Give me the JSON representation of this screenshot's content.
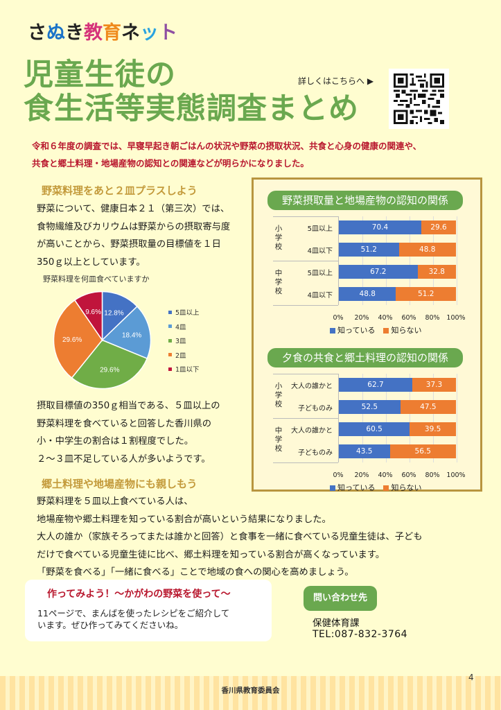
{
  "logo": {
    "chars": [
      {
        "c": "さ",
        "color": "#222222"
      },
      {
        "c": "ぬ",
        "color": "#1a73c8"
      },
      {
        "c": "き",
        "color": "#222222"
      },
      {
        "c": "教",
        "color": "#d6337a"
      },
      {
        "c": "育",
        "color": "#ef8a1c"
      },
      {
        "c": "ネ",
        "color": "#222222"
      },
      {
        "c": "ッ",
        "color": "#29a3e0"
      },
      {
        "c": "ト",
        "color": "#8e4fa2"
      }
    ],
    "text": "さぬき教育ネット"
  },
  "title": {
    "line1": "児童生徒の",
    "line2": "食生活等実態調査まとめ"
  },
  "detail_link": "詳しくはこちらへ ▶",
  "intro": {
    "line1": "令和６年度の調査では、早寝早起き朝ごはんの状況や野菜の摂取状況、共食と心身の健康の関連や、",
    "line2": "共食と郷土料理・地場産物の認知との関連などが明らかになりました。"
  },
  "section1": {
    "heading": "野菜料理をあと２皿プラスしよう",
    "para1": [
      "野菜について、健康日本２１（第三次）では、",
      "食物繊維及びカリウムは野菜からの摂取寄与度",
      "が高いことから、野菜摂取量の目標値を１日",
      "350ｇ以上としています。"
    ],
    "para2": [
      "摂取目標値の350ｇ相当である、５皿以上の",
      "野菜料理を食べていると回答した香川県の",
      "小・中学生の割合は１割程度でした。",
      " ２～３皿不足している人が多いようです。"
    ]
  },
  "section2": {
    "heading": "郷土料理や地場産物にも親しもう",
    "lines": [
      "野菜料理を５皿以上食べている人は、",
      "地場産物や郷土料理を知っている割合が高いという結果になりました。",
      "大人の誰か（家族そろってまたは誰かと回答）と食事を一緒に食べている児童生徒は、子ども",
      "だけで食べている児童生徒に比べ、郷土料理を知っている割合が高くなっています。",
      "「野菜を食べる」「一緒に食べる」ことで地域の食への関心を高めましょう。"
    ]
  },
  "chart_data": [
    {
      "type": "pie",
      "title": "野菜料理を何皿食べていますか",
      "categories": [
        "5皿以上",
        "4皿",
        "3皿",
        "2皿",
        "1皿以下"
      ],
      "values": [
        12.8,
        18.4,
        29.6,
        29.6,
        9.6
      ],
      "labels": [
        "12.8%",
        "18.4%",
        "29.6%",
        "29.6%",
        "9.6%"
      ],
      "colors": [
        "#4472c4",
        "#5b9bd5",
        "#70ad47",
        "#ed7d31",
        "#c0143c"
      ],
      "legend_position": "right"
    },
    {
      "type": "bar",
      "orientation": "horizontal-stacked-100",
      "title": "野菜摂取量と地場産物の認知の関係",
      "groups": [
        "小学校",
        "中学校"
      ],
      "categories": [
        "5皿以上",
        "4皿以下",
        "5皿以上",
        "4皿以下"
      ],
      "series": [
        {
          "name": "知っている",
          "color": "#4472c4",
          "values": [
            70.4,
            51.2,
            67.2,
            48.8
          ]
        },
        {
          "name": "知らない",
          "color": "#ed7d31",
          "values": [
            29.6,
            48.8,
            32.8,
            51.2
          ]
        }
      ],
      "xticks": [
        "0%",
        "20%",
        "40%",
        "60%",
        "80%",
        "100%"
      ],
      "xlim": [
        0,
        100
      ],
      "legend_position": "bottom"
    },
    {
      "type": "bar",
      "orientation": "horizontal-stacked-100",
      "title": "夕食の共食と郷土料理の認知の関係",
      "groups": [
        "小学校",
        "中学校"
      ],
      "categories": [
        "大人の誰かと",
        "子どものみ",
        "大人の誰かと",
        "子どものみ"
      ],
      "series": [
        {
          "name": "知っている",
          "color": "#4472c4",
          "values": [
            62.7,
            52.5,
            60.5,
            43.5
          ]
        },
        {
          "name": "知らない",
          "color": "#ed7d31",
          "values": [
            37.3,
            47.5,
            39.5,
            56.5
          ]
        }
      ],
      "xticks": [
        "0%",
        "20%",
        "40%",
        "60%",
        "80%",
        "100%"
      ],
      "xlim": [
        0,
        100
      ],
      "legend_position": "bottom"
    }
  ],
  "recipe": {
    "title": "作ってみよう！～かがわの野菜を使って～",
    "line1": "11ページで、まんばを使ったレシピをご紹介して",
    "line2": "います。ぜひ作ってみてくださいね。"
  },
  "contact": {
    "badge": "問い合わせ先",
    "dept": "保健体育課",
    "tel": "TEL:087-832-3764"
  },
  "footer": {
    "org": "香川県教育委員会",
    "page": "4"
  },
  "colors": {
    "background": "#fffdd0",
    "title_green": "#6aa84f",
    "accent_red": "#b8162d",
    "heading_gold": "#c39a3b",
    "frame_gold": "#b8953f"
  }
}
